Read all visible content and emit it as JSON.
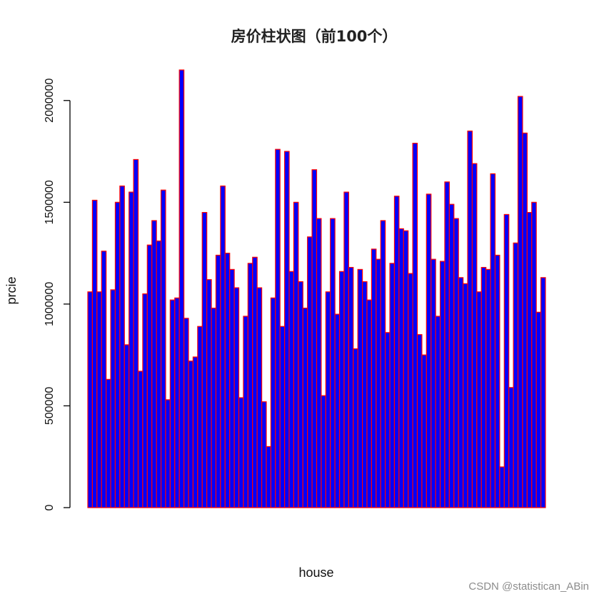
{
  "chart_data": {
    "type": "bar",
    "title": "房价柱状图（前100个）",
    "xlabel": "house",
    "ylabel": "prcie",
    "ylim": [
      0,
      2150000
    ],
    "yticks": [
      0,
      500000,
      1000000,
      1500000,
      2000000
    ],
    "ytick_labels": [
      "0",
      "500000",
      "1000000",
      "1500000",
      "2000000"
    ],
    "fill_color": "#0000ff",
    "border_color": "#ff0000",
    "values": [
      1060000,
      1510000,
      1060000,
      1260000,
      630000,
      1070000,
      1500000,
      1580000,
      800000,
      1550000,
      1710000,
      670000,
      1050000,
      1290000,
      1410000,
      1310000,
      1560000,
      530000,
      1020000,
      1030000,
      2150000,
      930000,
      720000,
      740000,
      890000,
      1450000,
      1120000,
      980000,
      1240000,
      1580000,
      1250000,
      1170000,
      1080000,
      540000,
      940000,
      1200000,
      1230000,
      1080000,
      520000,
      300000,
      1030000,
      1760000,
      890000,
      1750000,
      1160000,
      1500000,
      1110000,
      980000,
      1330000,
      1660000,
      1420000,
      550000,
      1060000,
      1420000,
      950000,
      1160000,
      1550000,
      1180000,
      780000,
      1170000,
      1110000,
      1020000,
      1270000,
      1220000,
      1410000,
      860000,
      1200000,
      1530000,
      1370000,
      1360000,
      1150000,
      1790000,
      850000,
      750000,
      1540000,
      1220000,
      940000,
      1210000,
      1600000,
      1490000,
      1420000,
      1130000,
      1100000,
      1850000,
      1690000,
      1060000,
      1180000,
      1170000,
      1640000,
      1240000,
      200000,
      1440000,
      590000,
      1300000,
      2020000,
      1840000,
      1450000,
      1500000,
      960000,
      1130000
    ]
  },
  "watermark": "CSDN @statistican_ABin"
}
